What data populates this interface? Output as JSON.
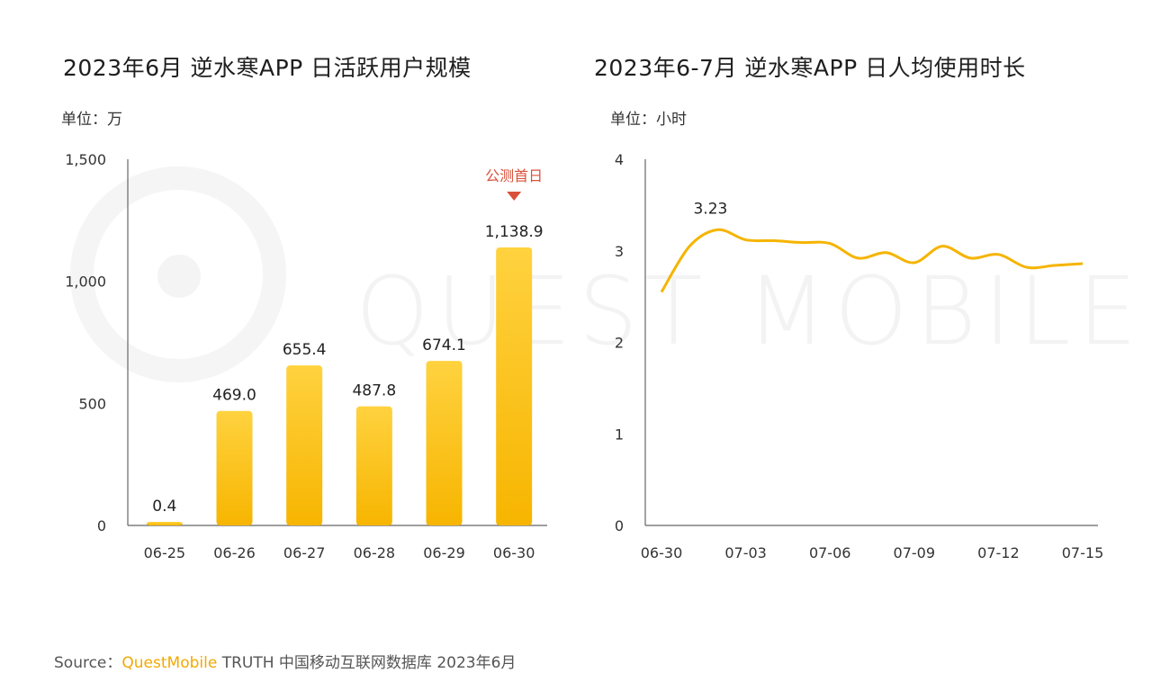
{
  "watermark": "QUEST MOBILE",
  "left": {
    "title": "2023年6月 逆水寒APP 日活跃用户规模",
    "unit": "单位：万",
    "annotation": "公测首日"
  },
  "right": {
    "title": "2023年6-7月 逆水寒APP 日人均使用时长",
    "unit": "单位：小时",
    "peak_label": "3.23"
  },
  "source": {
    "prefix": "Source：",
    "brand": "QuestMobile",
    "rest": " TRUTH 中国移动互联网数据库 2023年6月"
  },
  "colors": {
    "bar": "#f7b500",
    "bar_light": "#ffd23f",
    "line": "#f5b400",
    "annotation": "#d9513a"
  },
  "chart_data": [
    {
      "type": "bar",
      "title": "2023年6月 逆水寒APP 日活跃用户规模",
      "ylabel": "单位：万",
      "categories": [
        "06-25",
        "06-26",
        "06-27",
        "06-28",
        "06-29",
        "06-30"
      ],
      "values": [
        0.4,
        469.0,
        655.4,
        487.8,
        674.1,
        1138.9
      ],
      "value_labels": [
        "0.4",
        "469.0",
        "655.4",
        "487.8",
        "674.1",
        "1,138.9"
      ],
      "ylim": [
        0,
        1500
      ],
      "yticks": [
        0,
        500,
        1000,
        1500
      ],
      "ytick_labels": [
        "0",
        "500",
        "1,000",
        "1,500"
      ],
      "annotation": {
        "category": "06-30",
        "text": "公测首日"
      },
      "grid": false
    },
    {
      "type": "line",
      "title": "2023年6-7月 逆水寒APP 日人均使用时长",
      "ylabel": "单位：小时",
      "x": [
        "06-30",
        "07-01",
        "07-02",
        "07-03",
        "07-04",
        "07-05",
        "07-06",
        "07-07",
        "07-08",
        "07-09",
        "07-10",
        "07-11",
        "07-12",
        "07-13",
        "07-14",
        "07-15"
      ],
      "xtick_labels": [
        "06-30",
        "07-03",
        "07-06",
        "07-09",
        "07-12",
        "07-15"
      ],
      "values": [
        2.55,
        3.05,
        3.23,
        3.12,
        3.11,
        3.09,
        3.08,
        2.92,
        2.98,
        2.87,
        3.05,
        2.92,
        2.96,
        2.82,
        2.84,
        2.86
      ],
      "ylim": [
        0,
        4
      ],
      "yticks": [
        0,
        1,
        2,
        3,
        4
      ],
      "peak_label": {
        "x": "07-02",
        "text": "3.23"
      },
      "grid": false
    }
  ]
}
